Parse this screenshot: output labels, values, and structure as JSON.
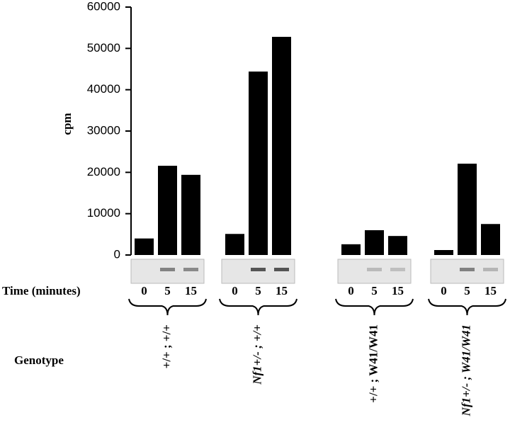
{
  "chart_data": {
    "type": "grouped-bar",
    "y_label": "cpm",
    "x_label": "Time (minutes)",
    "group_label": "Genotype",
    "color": "#000000",
    "ylim": [
      0,
      60000
    ],
    "yticks": [
      0,
      10000,
      20000,
      30000,
      40000,
      50000,
      60000
    ],
    "groups": [
      {
        "name": "+/+ ; +/+",
        "categories": [
          "0",
          "5",
          "15"
        ],
        "values": [
          4000,
          21600,
          19400
        ]
      },
      {
        "name": "Nf1+/- ; +/+",
        "categories": [
          "0",
          "5",
          "15"
        ],
        "values": [
          5100,
          44400,
          52800
        ]
      },
      {
        "name": "+/+ ; W41/W41",
        "categories": [
          "0",
          "5",
          "15"
        ],
        "values": [
          2600,
          6000,
          4600
        ]
      },
      {
        "name": "Nf1+/- ; W41/W41",
        "categories": [
          "0",
          "5",
          "15"
        ],
        "values": [
          1200,
          22100,
          7500
        ]
      }
    ]
  }
}
